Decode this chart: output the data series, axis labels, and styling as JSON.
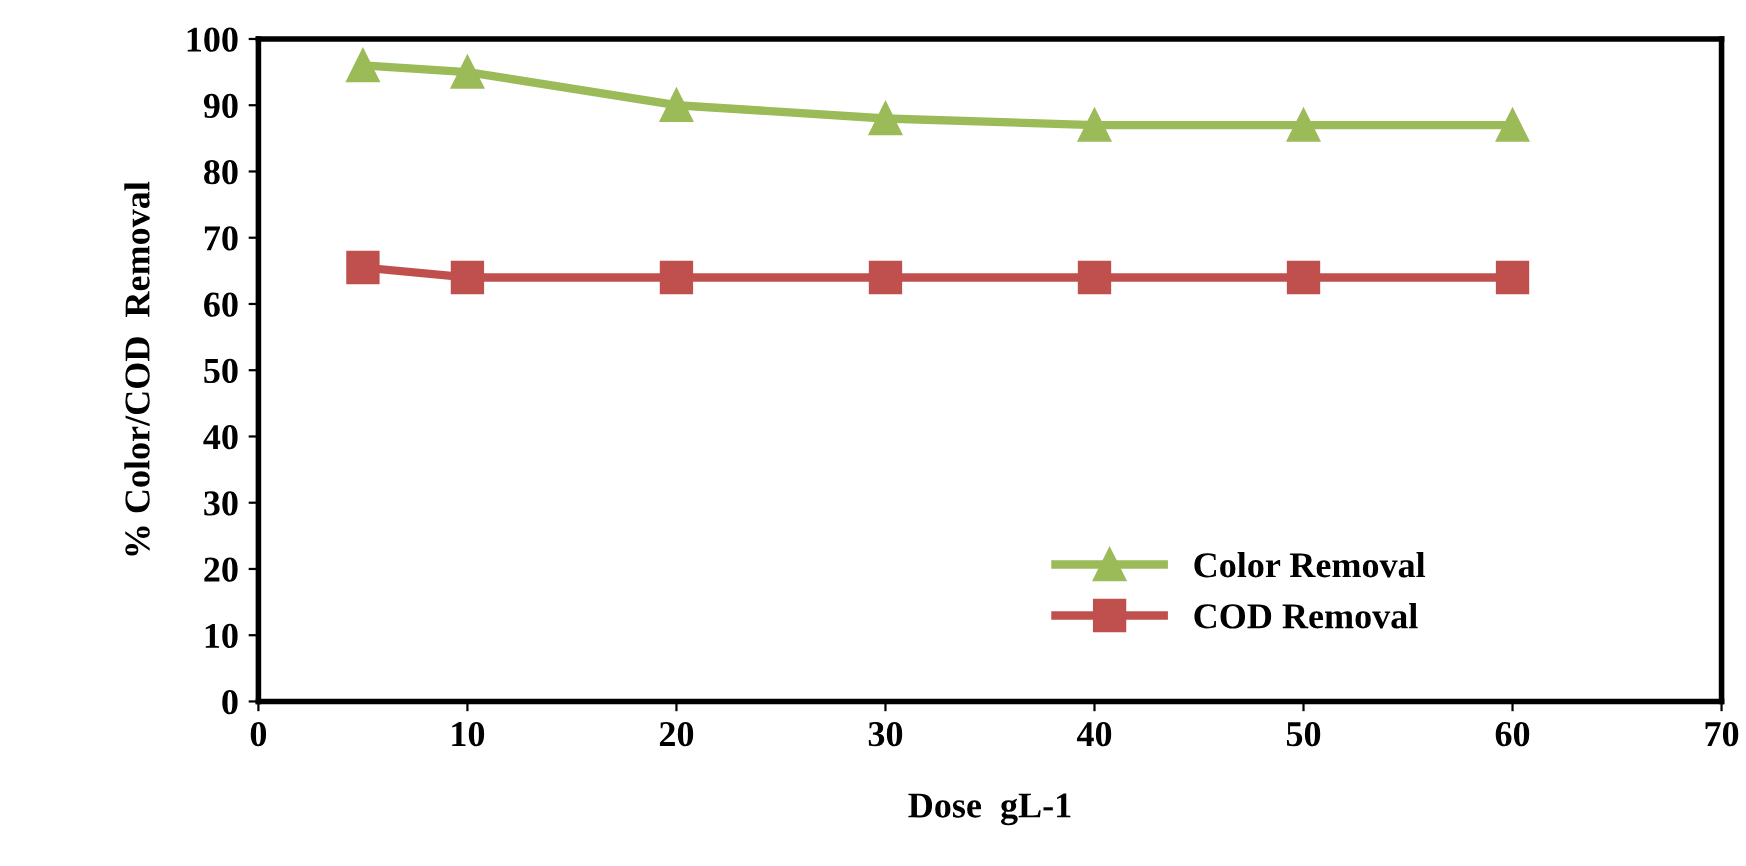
{
  "chart_data": {
    "type": "line",
    "xlabel": "Dose  gL-1",
    "ylabel": "% Color/COD  Removal",
    "xlim": [
      0,
      70
    ],
    "xticks": [
      0,
      10,
      20,
      30,
      40,
      50,
      60,
      70
    ],
    "ylim": [
      0,
      100
    ],
    "yticks": [
      0,
      10,
      20,
      30,
      40,
      50,
      60,
      70,
      80,
      90,
      100
    ],
    "x": [
      5,
      10,
      20,
      30,
      40,
      50,
      60
    ],
    "series": [
      {
        "name": "Color Removal",
        "color": "#9bbb59",
        "marker": "triangle",
        "values": [
          96,
          95,
          90,
          88,
          87,
          87,
          87
        ]
      },
      {
        "name": "COD Removal",
        "color": "#c0504d",
        "marker": "square",
        "values": [
          65.5,
          64,
          64,
          64,
          64,
          64,
          64
        ]
      }
    ],
    "grid": false,
    "legend": "bottom right",
    "line_style": "solid"
  }
}
